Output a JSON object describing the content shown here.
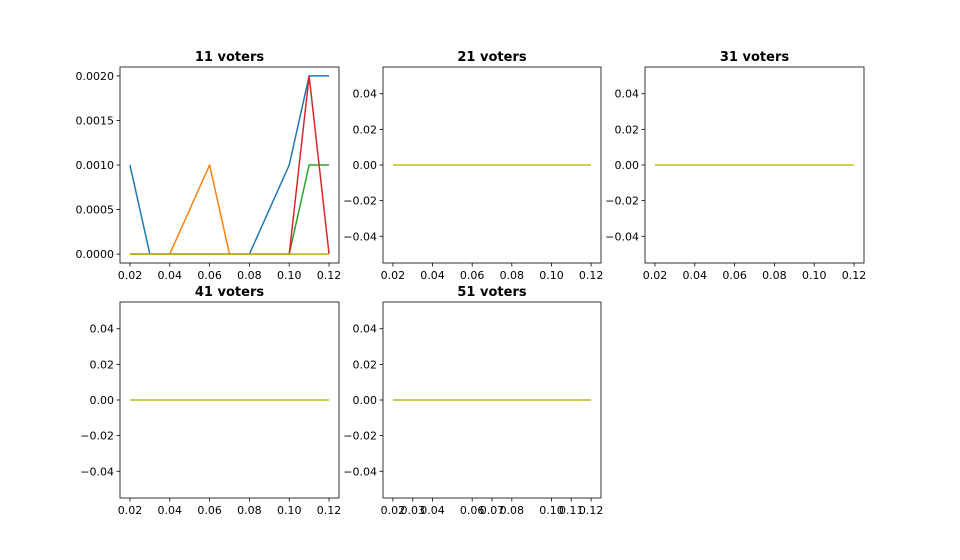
{
  "colors": [
    "#1f77b4",
    "#ff7f0e",
    "#2ca02c",
    "#d62728",
    "#bcbd22"
  ],
  "chart_data": [
    {
      "type": "line",
      "title": "11 voters",
      "xlim": [
        0.015,
        0.125
      ],
      "ylim": [
        -0.0001,
        0.0021
      ],
      "xticks": [
        0.02,
        0.04,
        0.06,
        0.08,
        0.1,
        0.12
      ],
      "xtick_labels": [
        "0.02",
        "0.04",
        "0.06",
        "0.08",
        "0.10",
        "0.12"
      ],
      "yticks": [
        0.0,
        0.0005,
        0.001,
        0.0015,
        0.002
      ],
      "ytick_labels": [
        "0.0000",
        "0.0005",
        "0.0010",
        "0.0015",
        "0.0020"
      ],
      "grid": false,
      "series": [
        {
          "color": "#1f77b4",
          "x": [
            0.02,
            0.03,
            0.04,
            0.05,
            0.06,
            0.07,
            0.08,
            0.09,
            0.1,
            0.11,
            0.12
          ],
          "y": [
            0.001,
            0,
            0,
            0,
            0,
            0,
            0,
            0.0005,
            0.001,
            0.002,
            0.002
          ]
        },
        {
          "color": "#ff7f0e",
          "x": [
            0.02,
            0.03,
            0.04,
            0.05,
            0.06,
            0.07,
            0.08,
            0.09,
            0.1,
            0.11,
            0.12
          ],
          "y": [
            0,
            0,
            0,
            0.0005,
            0.001,
            0,
            0,
            0,
            0,
            0,
            0
          ]
        },
        {
          "color": "#2ca02c",
          "x": [
            0.02,
            0.03,
            0.04,
            0.05,
            0.06,
            0.07,
            0.08,
            0.09,
            0.1,
            0.11,
            0.12
          ],
          "y": [
            0,
            0,
            0,
            0,
            0,
            0,
            0,
            0,
            0,
            0.001,
            0.001
          ]
        },
        {
          "color": "#d62728",
          "x": [
            0.02,
            0.03,
            0.04,
            0.05,
            0.06,
            0.07,
            0.08,
            0.09,
            0.1,
            0.11,
            0.12
          ],
          "y": [
            0,
            0,
            0,
            0,
            0,
            0,
            0,
            0,
            0,
            0.002,
            0
          ]
        },
        {
          "color": "#bcbd22",
          "x": [
            0.02,
            0.03,
            0.04,
            0.05,
            0.06,
            0.07,
            0.08,
            0.09,
            0.1,
            0.11,
            0.12
          ],
          "y": [
            0,
            0,
            0,
            0,
            0,
            0,
            0,
            0,
            0,
            0,
            0
          ]
        }
      ]
    },
    {
      "type": "line",
      "title": "21 voters",
      "xlim": [
        0.015,
        0.125
      ],
      "ylim": [
        -0.055,
        0.055
      ],
      "xticks": [
        0.02,
        0.04,
        0.06,
        0.08,
        0.1,
        0.12
      ],
      "xtick_labels": [
        "0.02",
        "0.04",
        "0.06",
        "0.08",
        "0.10",
        "0.12"
      ],
      "yticks": [
        0.04,
        0.02,
        0.0,
        -0.02,
        -0.04
      ],
      "ytick_labels": [
        "0.04",
        "0.02",
        "0.00",
        "−0.02",
        "−0.04"
      ],
      "grid": false,
      "series": [
        {
          "color": "#bcbd22",
          "x": [
            0.02,
            0.12
          ],
          "y": [
            0,
            0
          ]
        }
      ]
    },
    {
      "type": "line",
      "title": "31 voters",
      "xlim": [
        0.015,
        0.125
      ],
      "ylim": [
        -0.055,
        0.055
      ],
      "xticks": [
        0.02,
        0.04,
        0.06,
        0.08,
        0.1,
        0.12
      ],
      "xtick_labels": [
        "0.02",
        "0.04",
        "0.06",
        "0.08",
        "0.10",
        "0.12"
      ],
      "yticks": [
        0.04,
        0.02,
        0.0,
        -0.02,
        -0.04
      ],
      "ytick_labels": [
        "0.04",
        "0.02",
        "0.00",
        "−0.02",
        "−0.04"
      ],
      "grid": false,
      "series": [
        {
          "color": "#bcbd22",
          "x": [
            0.02,
            0.12
          ],
          "y": [
            0,
            0
          ]
        }
      ]
    },
    {
      "type": "line",
      "title": "41 voters",
      "xlim": [
        0.015,
        0.125
      ],
      "ylim": [
        -0.055,
        0.055
      ],
      "xticks": [
        0.02,
        0.04,
        0.06,
        0.08,
        0.1,
        0.12
      ],
      "xtick_labels": [
        "0.02",
        "0.04",
        "0.06",
        "0.08",
        "0.10",
        "0.12"
      ],
      "yticks": [
        0.04,
        0.02,
        0.0,
        -0.02,
        -0.04
      ],
      "ytick_labels": [
        "0.04",
        "0.02",
        "0.00",
        "−0.02",
        "−0.04"
      ],
      "grid": false,
      "series": [
        {
          "color": "#bcbd22",
          "x": [
            0.02,
            0.12
          ],
          "y": [
            0,
            0
          ]
        }
      ]
    },
    {
      "type": "line",
      "title": "51 voters",
      "xlim": [
        0.015,
        0.125
      ],
      "ylim": [
        -0.055,
        0.055
      ],
      "xticks": [
        0.02,
        0.03,
        0.04,
        0.06,
        0.07,
        0.08,
        0.1,
        0.11,
        0.12
      ],
      "xtick_labels": [
        "0.02",
        "0.03",
        "0.04",
        "0.06",
        "0.07",
        "0.08",
        "0.10",
        "0.11",
        "0.12"
      ],
      "yticks": [
        0.04,
        0.02,
        0.0,
        -0.02,
        -0.04
      ],
      "ytick_labels": [
        "0.04",
        "0.02",
        "0.00",
        "−0.02",
        "−0.04"
      ],
      "grid": false,
      "series": [
        {
          "color": "#bcbd22",
          "x": [
            0.02,
            0.12
          ],
          "y": [
            0,
            0
          ]
        }
      ]
    }
  ]
}
